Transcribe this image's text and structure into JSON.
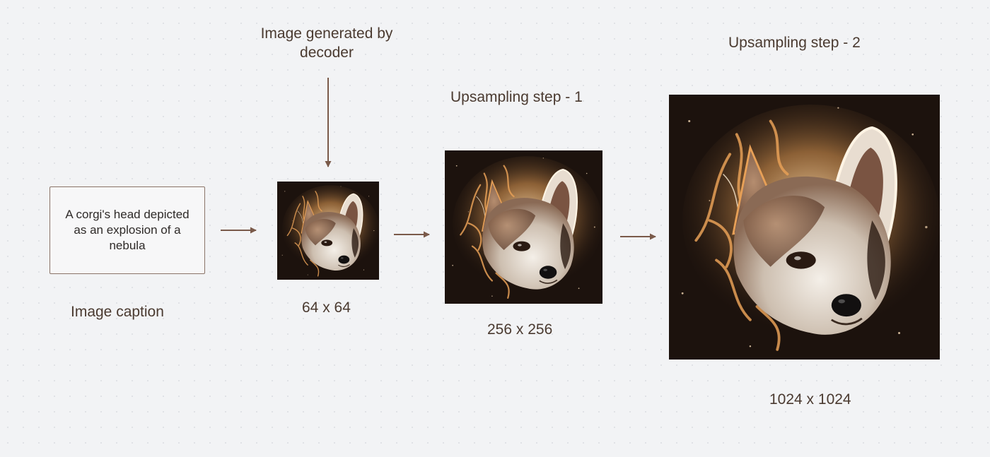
{
  "caption": {
    "text": "A corgi's head depicted as an explosion of a nebula",
    "label": "Image caption"
  },
  "decoder": {
    "label": "Image generated by decoder",
    "size_label": "64 x 64"
  },
  "upsample_1": {
    "label": "Upsampling step - 1",
    "size_label": "256 x 256"
  },
  "upsample_2": {
    "label": "Upsampling step - 2",
    "size_label": "1024 x 1024"
  },
  "colors": {
    "text": "#4a3a30",
    "arrow": "#7a5a4a",
    "image_background": "#1c120d",
    "nebula_glow": "#e7a057"
  },
  "icons": {
    "image": "corgi-nebula-image",
    "arrow": "arrow-right-icon"
  }
}
